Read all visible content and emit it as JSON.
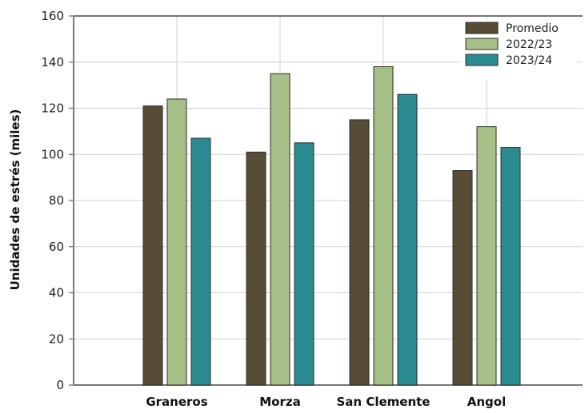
{
  "chart_data": {
    "type": "bar",
    "title": "",
    "xlabel": "",
    "ylabel": "Unidades de estrés (miles)",
    "ylim": [
      0,
      160
    ],
    "yticks": [
      0,
      20,
      40,
      60,
      80,
      100,
      120,
      140,
      160
    ],
    "categories": [
      "Graneros",
      "Morza",
      "San Clemente",
      "Angol"
    ],
    "series": [
      {
        "name": "Promedio",
        "color": "#574d37",
        "values": [
          121,
          101,
          115,
          93
        ]
      },
      {
        "name": "2022/23",
        "color": "#a6bf86",
        "values": [
          124,
          135,
          138,
          112
        ]
      },
      {
        "name": "2023/24",
        "color": "#2a8c90",
        "values": [
          107,
          105,
          126,
          103
        ]
      }
    ],
    "grid": true,
    "legend_position": "top-right"
  }
}
